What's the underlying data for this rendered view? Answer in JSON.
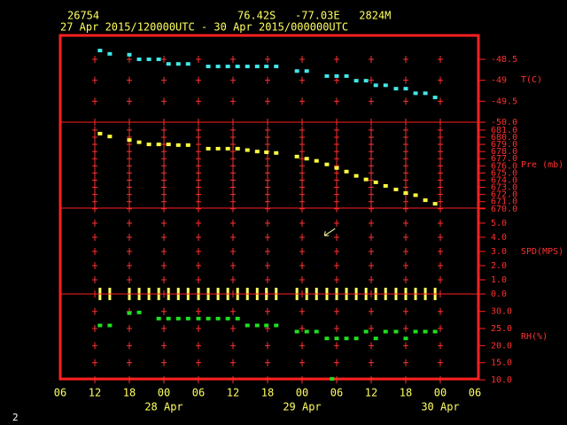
{
  "header": {
    "station": "26754",
    "location": "76.42S   -77.03E   2824M",
    "time_range": "27 Apr 2015/120000UTC - 30 Apr 2015/000000UTC"
  },
  "footer": "2",
  "chart_data": [
    {
      "type": "scatter",
      "ylabel": "T(C)",
      "ylim": [
        -50.0,
        -47.93
      ],
      "yticks": [
        -48.5,
        -49.0,
        -49.5,
        {
          "value": -50.0,
          "label": "-50.0"
        }
      ],
      "series": [
        {
          "color": "#40e8e8",
          "marker": "square",
          "x": [
            6.9,
            8.6,
            12,
            13.7,
            15.4,
            17.1,
            18.8,
            20.5,
            22.2,
            25.7,
            27.4,
            29.1,
            30.8,
            32.5,
            34.2,
            35.8,
            37.5,
            41.1,
            42.8,
            46.3,
            48,
            49.7,
            51.4,
            53.1,
            54.8,
            56.5,
            58.3,
            60,
            61.7,
            63.4,
            65.1
          ],
          "values": [
            -48.29,
            -48.37,
            -48.39,
            -48.5,
            -48.5,
            -48.5,
            -48.61,
            -48.61,
            -48.61,
            -48.67,
            -48.67,
            -48.67,
            -48.67,
            -48.67,
            -48.67,
            -48.67,
            -48.67,
            -48.78,
            -48.78,
            -48.9,
            -48.9,
            -48.9,
            -49.01,
            -49.01,
            -49.12,
            -49.12,
            -49.2,
            -49.2,
            -49.31,
            -49.31,
            -49.41
          ]
        }
      ]
    },
    {
      "type": "scatter",
      "ylabel": "Pre (mb)",
      "ylim": [
        670.1,
        682.1
      ],
      "yticks": [
        {
          "value": 681,
          "label": "681.0"
        },
        {
          "value": 680,
          "label": "680.0"
        },
        {
          "value": 679,
          "label": "679.0"
        },
        {
          "value": 678,
          "label": "678.0"
        },
        {
          "value": 677,
          "label": "677.0"
        },
        {
          "value": 676,
          "label": "676.0"
        },
        {
          "value": 675,
          "label": "675.0"
        },
        {
          "value": 674,
          "label": "674.0"
        },
        {
          "value": 673,
          "label": "673.0"
        },
        {
          "value": 672,
          "label": "672.0"
        },
        {
          "value": 671,
          "label": "671.0"
        },
        {
          "value": 670,
          "label": "670.0"
        }
      ],
      "series": [
        {
          "color": "#ffff40",
          "marker": "square",
          "x": [
            6.9,
            8.6,
            12,
            13.7,
            15.4,
            17.1,
            18.8,
            20.5,
            22.2,
            25.7,
            27.4,
            29.1,
            30.8,
            32.5,
            34.2,
            35.8,
            37.5,
            41.1,
            42.8,
            44.5,
            46.3,
            48,
            49.7,
            51.4,
            53.1,
            54.8,
            56.5,
            58.3,
            60,
            61.7,
            63.4,
            65.1
          ],
          "values": [
            680.5,
            680.1,
            679.6,
            679.3,
            679.0,
            679.0,
            679.0,
            678.9,
            678.9,
            678.4,
            678.4,
            678.4,
            678.4,
            678.2,
            678.0,
            677.9,
            677.8,
            677.3,
            677.0,
            676.7,
            676.2,
            675.7,
            675.2,
            674.6,
            674.1,
            673.7,
            673.2,
            672.7,
            672.2,
            671.9,
            671.2,
            670.7
          ]
        }
      ]
    },
    {
      "type": "scatter",
      "ylabel": "SPD(MPS)",
      "ylim": [
        0,
        6.06
      ],
      "yticks": [
        {
          "value": 5,
          "label": "5.0"
        },
        {
          "value": 4,
          "label": "4.0"
        },
        {
          "value": 3,
          "label": "3.0"
        },
        {
          "value": 2,
          "label": "2.0"
        },
        {
          "value": 1,
          "label": "1.0"
        },
        {
          "value": 0,
          "label": "0.0"
        }
      ],
      "series": [
        {
          "color": "#ffff60",
          "marker": "tick",
          "x": [
            6.9,
            8.6,
            12,
            13.7,
            15.4,
            17.1,
            18.8,
            20.5,
            22.2,
            24,
            25.7,
            27.4,
            29.1,
            30.8,
            32.5,
            34.2,
            35.8,
            37.5,
            41.1,
            42.8,
            44.5,
            46.3,
            48,
            49.7,
            51.4,
            53.1,
            54.8,
            56.5,
            58.3,
            60,
            61.7,
            63.4,
            65.1
          ],
          "values": [
            0,
            0,
            0,
            0,
            0,
            0,
            0,
            0,
            0,
            0,
            0,
            0,
            0,
            0,
            0,
            0,
            0,
            0,
            0,
            0,
            0,
            0,
            0,
            0,
            0,
            0,
            0,
            0,
            0,
            0,
            0,
            0,
            0
          ]
        },
        {
          "color": "#ffffa0",
          "marker": "arrow",
          "x": [
            46.5
          ],
          "values": [
            4.3
          ]
        }
      ]
    },
    {
      "type": "scatter",
      "ylabel": "RH(%)",
      "ylim": [
        10,
        35.1
      ],
      "yticks": [
        {
          "value": 30,
          "label": "30.0"
        },
        {
          "value": 25,
          "label": "25.0"
        },
        {
          "value": 20,
          "label": "20.0"
        },
        {
          "value": 15,
          "label": "15.0"
        },
        {
          "value": 10,
          "label": "10.0"
        }
      ],
      "xlim": [
        0,
        72
      ],
      "xticks": [
        {
          "value": 0,
          "label": "06"
        },
        {
          "value": 6,
          "label": "12"
        },
        {
          "value": 12,
          "label": "18"
        },
        {
          "value": 18,
          "label": "00"
        },
        {
          "value": 24,
          "label": "06"
        },
        {
          "value": 30,
          "label": "12"
        },
        {
          "value": 36,
          "label": "18"
        },
        {
          "value": 42,
          "label": "00"
        },
        {
          "value": 48,
          "label": "06"
        },
        {
          "value": 54,
          "label": "12"
        },
        {
          "value": 60,
          "label": "18"
        },
        {
          "value": 66,
          "label": "00"
        },
        {
          "value": 72,
          "label": "06"
        }
      ],
      "xdates": [
        {
          "value": 18,
          "label": "28 Apr"
        },
        {
          "value": 42,
          "label": "29 Apr"
        },
        {
          "value": 66,
          "label": "30 Apr"
        }
      ],
      "series": [
        {
          "color": "#20e020",
          "marker": "square",
          "x": [
            6.9,
            8.6,
            12,
            13.7,
            17.1,
            18.8,
            20.5,
            22.2,
            24,
            25.7,
            27.4,
            29.1,
            30.8,
            32.5,
            34.2,
            35.8,
            37.5,
            41.1,
            42.8,
            44.5,
            46.3,
            47.2,
            48,
            49.7,
            51.4,
            53.1,
            54.8,
            56.5,
            58.3,
            60,
            61.7,
            63.4,
            65.1
          ],
          "values": [
            25.9,
            25.9,
            29.5,
            29.7,
            27.9,
            27.9,
            27.9,
            27.9,
            27.9,
            27.9,
            27.9,
            27.9,
            27.9,
            25.9,
            25.9,
            25.9,
            25.9,
            24.1,
            24.1,
            24.1,
            22.1,
            10.3,
            22.1,
            22.1,
            22.1,
            24.1,
            22.1,
            24.1,
            24.1,
            22.1,
            24.1,
            24.1,
            24.1
          ]
        }
      ]
    }
  ]
}
